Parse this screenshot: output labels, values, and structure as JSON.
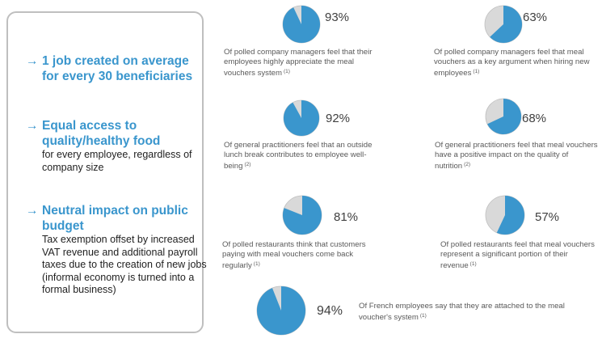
{
  "panel": {
    "points": [
      {
        "arrow": "→",
        "title": "1 job created on average for every 30 beneficiaries",
        "body": ""
      },
      {
        "arrow": "→",
        "title": "Equal access to quality/healthy food",
        "body": "for every employee, regardless of  company size"
      },
      {
        "arrow": "→",
        "title": "Neutral impact on public budget",
        "body": "Tax exemption offset by increased VAT revenue and additional payroll taxes due to the creation of new jobs (informal economy is turned into a formal business)"
      }
    ]
  },
  "chart_data": {
    "type": "pie",
    "colors": {
      "value": "#3a96cd",
      "remainder": "#d9d9d9",
      "border": "#bfbfbf"
    },
    "items": [
      {
        "value": 93,
        "label": "93%",
        "text": "Of polled company managers feel that their employees highly appreciate the meal vouchers system",
        "note": "(1)"
      },
      {
        "value": 63,
        "label": "63%",
        "text": "Of polled company managers feel that meal vouchers as a key argument when hiring new employees",
        "note": "(1)"
      },
      {
        "value": 92,
        "label": "92%",
        "text": "Of general practitioners feel that an outside lunch break contributes to employee well-being",
        "note": "(2)"
      },
      {
        "value": 68,
        "label": "68%",
        "text": "Of general practitioners feel that meal vouchers have a positive impact on the quality of nutrition",
        "note": "(2)"
      },
      {
        "value": 81,
        "label": "81%",
        "text": "Of polled restaurants think that customers paying with meal vouchers come back regularly",
        "note": "(1)"
      },
      {
        "value": 57,
        "label": "57%",
        "text": "Of polled restaurants feel that meal vouchers represent a significant portion of their revenue",
        "note": "(1)"
      },
      {
        "value": 94,
        "label": "94%",
        "text": "Of French employees say that they are attached to the meal voucher's system",
        "note": "(1)"
      }
    ]
  }
}
